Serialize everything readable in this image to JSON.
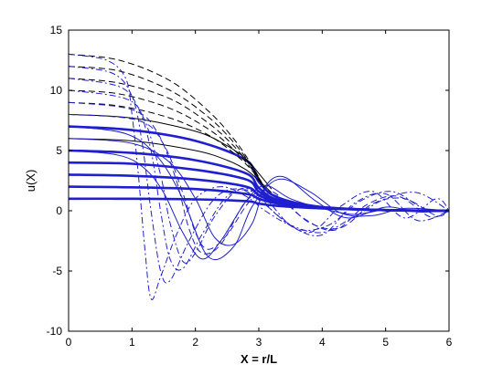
{
  "chart_data": {
    "type": "line",
    "title": "",
    "xlabel": "X = r/L",
    "ylabel": "u(X)",
    "xlim": [
      0,
      6
    ],
    "ylim": [
      -10,
      15
    ],
    "xticks": [
      0,
      1,
      2,
      3,
      4,
      5,
      6
    ],
    "yticks": [
      -10,
      -5,
      0,
      5,
      10,
      15
    ],
    "grid": false,
    "legend": "none",
    "colors": {
      "black": "#000000",
      "blue": "#1f1fd0"
    },
    "series": [
      {
        "style": "solid-thick",
        "color": "blue",
        "x": [
          0,
          1,
          2,
          2.8,
          3.0,
          3.3,
          4,
          5,
          6
        ],
        "y": [
          1.0,
          1.0,
          0.95,
          0.8,
          0.6,
          0.4,
          0.2,
          0.05,
          0.0
        ]
      },
      {
        "style": "solid-thick",
        "color": "blue",
        "x": [
          0,
          1,
          2,
          2.8,
          3.0,
          3.3,
          4,
          5,
          6
        ],
        "y": [
          2.0,
          1.95,
          1.8,
          1.4,
          1.0,
          0.6,
          0.25,
          0.06,
          0.0
        ]
      },
      {
        "style": "solid-thick",
        "color": "blue",
        "x": [
          0,
          1,
          2,
          2.8,
          3.0,
          3.3,
          4,
          5,
          6
        ],
        "y": [
          3.0,
          2.9,
          2.6,
          2.0,
          1.3,
          0.7,
          0.25,
          0.05,
          0.0
        ]
      },
      {
        "style": "solid-thick",
        "color": "blue",
        "x": [
          0,
          1,
          2,
          2.8,
          3.0,
          3.3,
          4,
          5,
          6
        ],
        "y": [
          4.0,
          3.9,
          3.4,
          2.6,
          1.6,
          0.8,
          0.3,
          0.05,
          0.0
        ]
      },
      {
        "style": "solid-thick",
        "color": "blue",
        "x": [
          0,
          1,
          2,
          2.8,
          3.0,
          3.3,
          4,
          5,
          6
        ],
        "y": [
          5.0,
          4.8,
          4.2,
          3.1,
          1.9,
          0.9,
          0.3,
          0.05,
          0.0
        ]
      },
      {
        "style": "solid-thick",
        "color": "blue",
        "x": [
          0,
          1,
          2,
          2.8,
          3.0,
          3.3,
          4,
          5,
          6
        ],
        "y": [
          7.0,
          6.7,
          5.8,
          4.2,
          2.4,
          1.1,
          0.3,
          0.05,
          0.0
        ]
      },
      {
        "style": "solid-thin",
        "color": "black",
        "x": [
          0,
          1,
          2,
          2.5,
          2.8,
          3.0,
          3.2
        ],
        "y": [
          6.0,
          5.8,
          5.0,
          4.2,
          3.4,
          2.5,
          1.5
        ]
      },
      {
        "style": "solid-thin",
        "color": "black",
        "x": [
          0,
          1,
          2,
          2.5,
          2.8,
          3.0,
          3.2
        ],
        "y": [
          8.0,
          7.7,
          6.6,
          5.4,
          4.3,
          3.1,
          1.8
        ]
      },
      {
        "style": "dashed",
        "color": "black",
        "x": [
          0,
          0.8,
          1.6,
          2.2,
          2.6,
          2.9,
          3.1
        ],
        "y": [
          9.0,
          8.7,
          7.7,
          6.3,
          4.8,
          3.3,
          1.8
        ]
      },
      {
        "style": "dashed",
        "color": "black",
        "x": [
          0,
          0.8,
          1.6,
          2.2,
          2.6,
          2.9,
          3.1
        ],
        "y": [
          10.0,
          9.7,
          8.5,
          6.8,
          5.1,
          3.4,
          1.8
        ]
      },
      {
        "style": "dashed",
        "color": "black",
        "x": [
          0,
          0.8,
          1.6,
          2.2,
          2.6,
          2.9,
          3.1
        ],
        "y": [
          11.0,
          10.6,
          9.3,
          7.3,
          5.4,
          3.5,
          1.8
        ]
      },
      {
        "style": "dashed",
        "color": "black",
        "x": [
          0,
          0.8,
          1.6,
          2.2,
          2.6,
          2.9,
          3.1
        ],
        "y": [
          12.0,
          11.6,
          10.0,
          7.8,
          5.7,
          3.6,
          1.8
        ]
      },
      {
        "style": "dashed",
        "color": "black",
        "x": [
          0,
          0.8,
          1.6,
          2.2,
          2.6,
          2.9,
          3.1
        ],
        "y": [
          13.0,
          12.5,
          10.8,
          8.3,
          6.0,
          3.7,
          1.8
        ]
      },
      {
        "style": "solid-thin",
        "color": "blue",
        "x": [
          0,
          0.8,
          1.2,
          1.5,
          1.8,
          2.1,
          2.4,
          2.8,
          3.1,
          3.5,
          4.0,
          4.5,
          5.0,
          5.5,
          6.0
        ],
        "y": [
          5.0,
          4.6,
          3.5,
          1.5,
          -1.8,
          -4.0,
          -2.5,
          0.8,
          2.1,
          1.0,
          0.2,
          -0.3,
          0.1,
          0.0,
          0.0
        ]
      },
      {
        "style": "solid-thin",
        "color": "blue",
        "x": [
          0,
          0.9,
          1.4,
          1.8,
          2.2,
          2.6,
          2.9,
          3.3,
          3.8,
          4.3,
          4.8,
          5.3,
          6.0
        ],
        "y": [
          7.0,
          6.4,
          4.5,
          1.0,
          -3.8,
          -3.0,
          0.4,
          2.6,
          1.6,
          -0.2,
          -0.4,
          0.2,
          0.0
        ]
      },
      {
        "style": "solid-thin",
        "color": "blue",
        "x": [
          0,
          1.0,
          1.6,
          2.0,
          2.3,
          2.6,
          2.9,
          3.1,
          3.4,
          3.9,
          4.4,
          5.0,
          5.5,
          6.0
        ],
        "y": [
          6.0,
          5.6,
          4.0,
          1.0,
          -2.2,
          -2.8,
          -1.0,
          2.0,
          2.8,
          0.8,
          -0.6,
          0.3,
          -0.1,
          0.0
        ]
      },
      {
        "style": "dashdot",
        "color": "blue",
        "x": [
          0,
          0.6,
          0.9,
          1.0,
          1.1,
          1.2,
          1.3,
          1.45,
          1.7,
          2.0,
          2.4,
          2.8,
          3.1,
          3.5,
          4.0,
          4.5,
          5.0,
          5.5,
          6.0
        ],
        "y": [
          13.0,
          12.5,
          11.0,
          8.0,
          3.0,
          -3.0,
          -7.3,
          -5.5,
          -2.0,
          1.0,
          2.0,
          1.2,
          0.0,
          -1.2,
          -1.8,
          -0.5,
          1.0,
          1.5,
          0.0
        ]
      },
      {
        "style": "dashdot",
        "color": "blue",
        "x": [
          0,
          0.7,
          1.0,
          1.15,
          1.3,
          1.45,
          1.6,
          1.9,
          2.3,
          2.7,
          3.1,
          3.6,
          4.1,
          4.6,
          5.1,
          5.6,
          6.0
        ],
        "y": [
          12.0,
          11.4,
          9.5,
          6.0,
          0.0,
          -5.0,
          -5.8,
          -2.5,
          1.0,
          1.8,
          0.5,
          -1.5,
          -1.2,
          0.8,
          1.6,
          0.2,
          0.0
        ]
      },
      {
        "style": "dashdot",
        "color": "blue",
        "x": [
          0,
          0.8,
          1.1,
          1.3,
          1.45,
          1.6,
          1.8,
          2.1,
          2.5,
          2.9,
          3.3,
          3.8,
          4.3,
          4.8,
          5.3,
          5.8,
          6.0
        ],
        "y": [
          11.0,
          10.3,
          8.5,
          5.0,
          0.0,
          -4.0,
          -4.8,
          -2.0,
          1.2,
          1.6,
          -0.4,
          -1.8,
          0.4,
          1.6,
          -0.6,
          1.0,
          0.0
        ]
      },
      {
        "style": "dashdot",
        "color": "blue",
        "x": [
          0,
          0.9,
          1.2,
          1.45,
          1.6,
          1.8,
          2.0,
          2.3,
          2.7,
          3.1,
          3.5,
          4.0,
          4.5,
          5.0,
          5.5,
          6.0
        ],
        "y": [
          10.0,
          9.3,
          7.5,
          3.0,
          -1.0,
          -4.2,
          -3.5,
          -0.5,
          1.8,
          1.0,
          -1.2,
          -2.0,
          0.6,
          1.4,
          -0.8,
          0.0
        ]
      },
      {
        "style": "dashed",
        "color": "blue",
        "x": [
          0,
          1.0,
          1.4,
          1.7,
          1.9,
          2.1,
          2.4,
          2.8,
          3.2,
          3.7,
          4.2,
          4.7,
          5.2,
          5.7,
          6.0
        ],
        "y": [
          9.0,
          8.4,
          6.5,
          2.5,
          -1.5,
          -3.5,
          -2.8,
          0.8,
          1.6,
          -0.6,
          -1.6,
          0.5,
          1.2,
          -0.5,
          0.0
        ]
      },
      {
        "style": "dashed",
        "color": "blue",
        "x": [
          0,
          1.1,
          1.5,
          1.8,
          2.0,
          2.2,
          2.5,
          2.9,
          3.3,
          3.8,
          4.3,
          4.8,
          5.3,
          5.8,
          6.0
        ],
        "y": [
          8.0,
          7.5,
          5.5,
          1.5,
          -1.8,
          -3.2,
          -2.0,
          1.0,
          1.2,
          -1.0,
          -1.4,
          0.6,
          1.0,
          -0.4,
          0.0
        ]
      }
    ]
  }
}
